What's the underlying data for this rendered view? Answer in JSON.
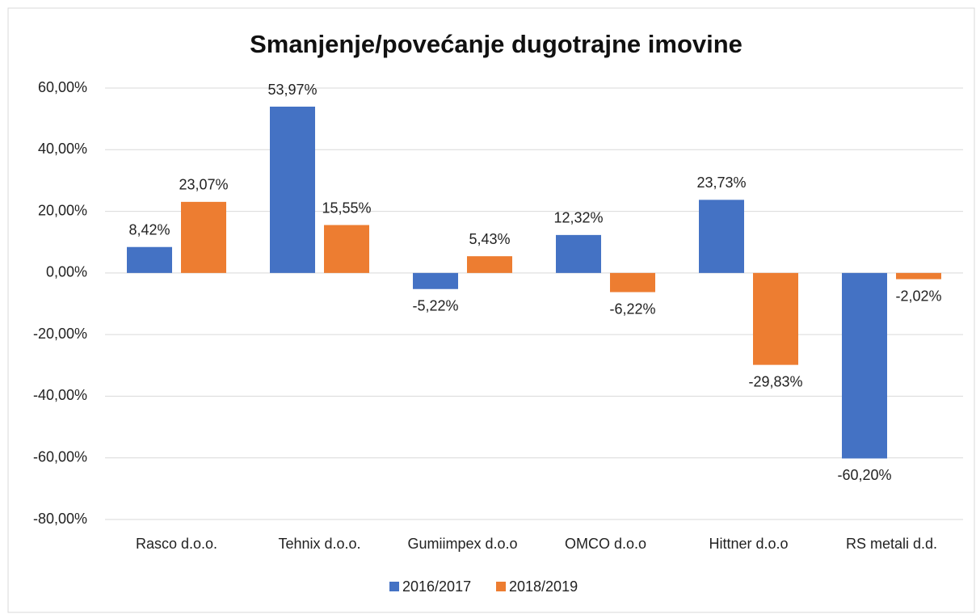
{
  "chart_data": {
    "type": "bar",
    "title": "Smanjenje/povećanje dugotrajne imovine",
    "categories": [
      "Rasco d.o.o.",
      "Tehnix d.o.o.",
      "Gumiimpex d.o.o",
      "OMCO d.o.o",
      "Hittner d.o.o",
      "RS metali d.d."
    ],
    "series": [
      {
        "name": "2016/2017",
        "color": "#4472c4",
        "values": [
          8.42,
          53.97,
          -5.22,
          12.32,
          23.73,
          -60.2
        ],
        "value_labels": [
          "8,42%",
          "53,97%",
          "-5,22%",
          "12,32%",
          "23,73%",
          "-60,20%"
        ]
      },
      {
        "name": "2018/2019",
        "color": "#ed7d31",
        "values": [
          23.07,
          15.55,
          5.43,
          -6.22,
          -29.83,
          -2.02
        ],
        "value_labels": [
          "23,07%",
          "15,55%",
          "5,43%",
          "-6,22%",
          "-29,83%",
          "-2,02%"
        ]
      }
    ],
    "ylim": [
      -80,
      60
    ],
    "yticks": [
      {
        "value": -80,
        "label": "-80,00%"
      },
      {
        "value": -60,
        "label": "-60,00%"
      },
      {
        "value": -40,
        "label": "-40,00%"
      },
      {
        "value": -20,
        "label": "-20,00%"
      },
      {
        "value": 0,
        "label": "0,00%"
      },
      {
        "value": 20,
        "label": "20,00%"
      },
      {
        "value": 40,
        "label": "40,00%"
      },
      {
        "value": 60,
        "label": "60,00%"
      }
    ],
    "grid": true,
    "legend": "bottom"
  }
}
